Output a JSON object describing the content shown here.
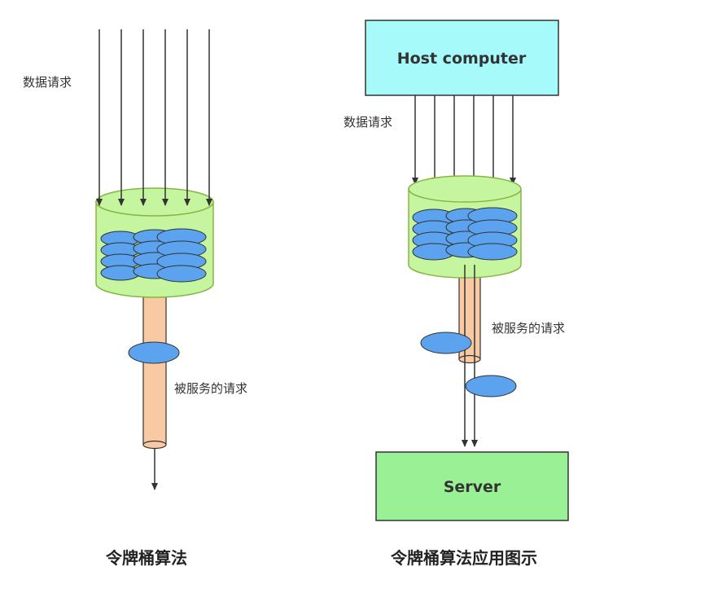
{
  "left": {
    "request_label": "数据请求",
    "served_label": "被服务的请求",
    "caption": "令牌桶算法"
  },
  "right": {
    "host_label": "Host computer",
    "request_label": "数据请求",
    "served_label": "被服务的请求",
    "server_label": "Server",
    "caption": "令牌桶算法应用图示"
  },
  "colors": {
    "bucket_fill": "#c6f5a0",
    "bucket_stroke": "#86b545",
    "token_fill": "#5ba3ee",
    "pipe_fill": "#f8c9a2",
    "host_fill": "#a6fafa",
    "server_fill": "#9af094",
    "line": "#333333"
  }
}
